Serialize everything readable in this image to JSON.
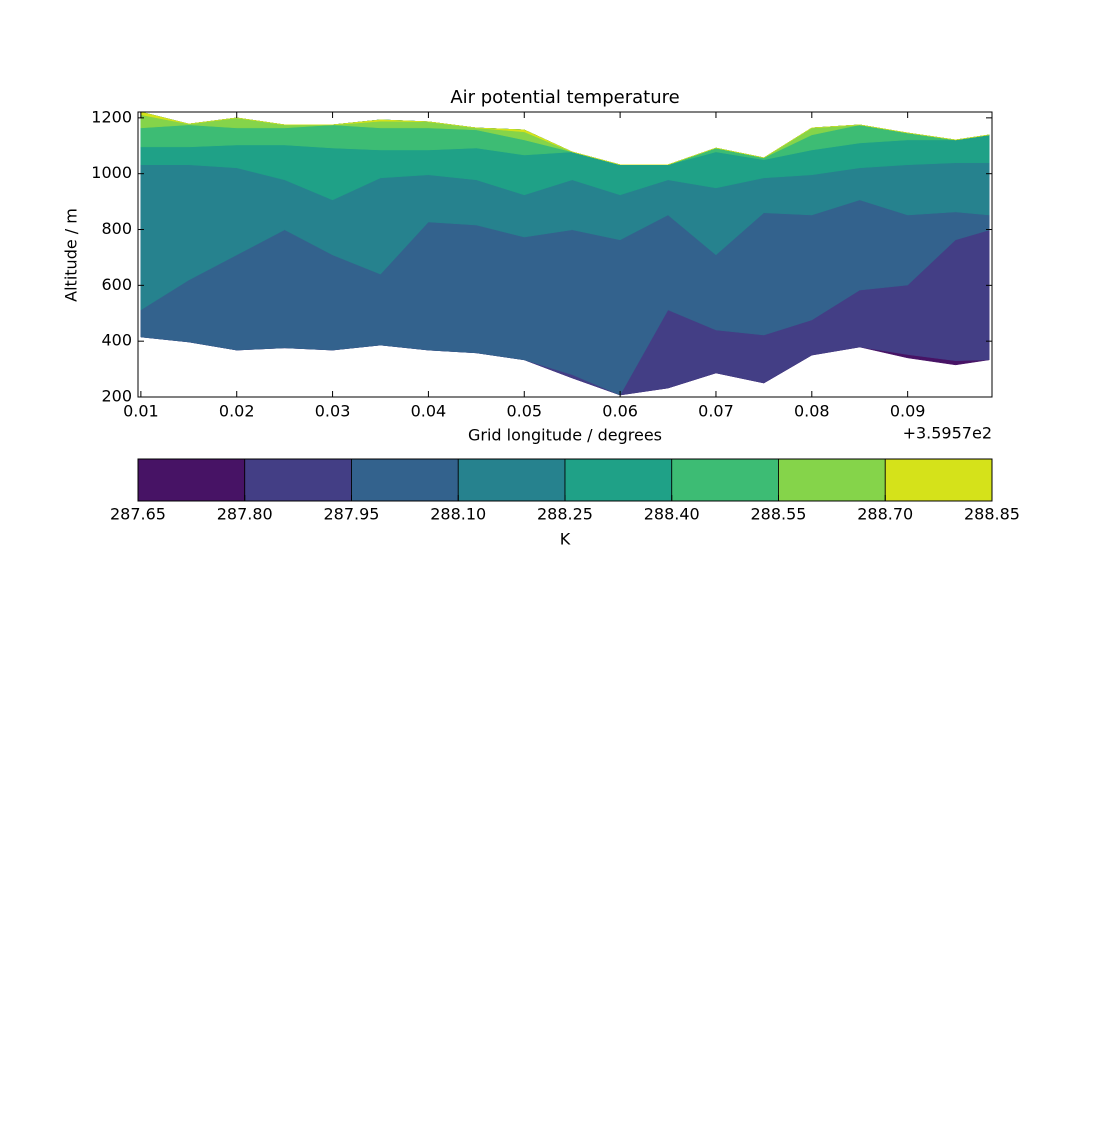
{
  "chart_data": {
    "type": "contourf",
    "title": "Air potential temperature",
    "xlabel": "Grid longitude / degrees",
    "ylabel": "Altitude / m",
    "x_offset_label": "+3.5957e2",
    "xlim": [
      0.0097,
      0.0988
    ],
    "xticks": [
      0.01,
      0.02,
      0.03,
      0.04,
      0.05,
      0.06,
      0.07,
      0.08,
      0.09
    ],
    "ylim": [
      200,
      1221
    ],
    "yticks": [
      200,
      400,
      600,
      800,
      1000,
      1200
    ],
    "x": [
      0.01,
      0.015,
      0.02,
      0.025,
      0.03,
      0.035,
      0.04,
      0.045,
      0.05,
      0.055,
      0.06,
      0.065,
      0.07,
      0.075,
      0.08,
      0.085,
      0.09,
      0.095,
      0.0985
    ],
    "ground": [
      415,
      397,
      368,
      376,
      368,
      386,
      368,
      358,
      333,
      268,
      207,
      232,
      286,
      250,
      350,
      379,
      340,
      315,
      333
    ],
    "top": [
      1221,
      1178,
      1200,
      1175,
      1175,
      1193,
      1186,
      1164,
      1157,
      1078,
      1032,
      1032,
      1092,
      1057,
      1164,
      1175,
      1146,
      1121,
      1139
    ],
    "boundaries": [
      [
        250,
        250,
        365,
        250,
        250,
        250,
        250,
        250,
        250,
        262,
        200,
        200,
        200,
        200,
        200,
        200,
        352,
        330,
        325
      ],
      [
        300,
        300,
        300,
        300,
        300,
        300,
        300,
        300,
        320,
        280,
        200,
        512,
        440,
        422,
        476,
        583,
        601,
        763,
        798
      ],
      [
        512,
        619,
        709,
        799,
        709,
        640,
        827,
        816,
        773,
        799,
        763,
        852,
        709,
        860,
        852,
        906,
        852,
        863,
        852
      ],
      [
        1032,
        1032,
        1021,
        978,
        906,
        985,
        996,
        978,
        924,
        978,
        924,
        978,
        949,
        985,
        996,
        1021,
        1032,
        1039,
        1039
      ],
      [
        1096,
        1096,
        1103,
        1103,
        1092,
        1085,
        1085,
        1092,
        1067,
        1078,
        1050,
        1067,
        1078,
        1050,
        1085,
        1110,
        1121,
        1121,
        1139
      ],
      [
        1164,
        1175,
        1164,
        1164,
        1175,
        1164,
        1164,
        1157,
        1121,
        1100,
        1100,
        1100,
        1100,
        1100,
        1139,
        1200,
        1200,
        1200,
        1200
      ],
      [
        1211,
        1230,
        1230,
        1230,
        1230,
        1188,
        1230,
        1230,
        1150,
        1230,
        1230,
        1230,
        1230,
        1230,
        1230,
        1230,
        1230,
        1230,
        1230
      ]
    ],
    "colorbar": {
      "label": "K",
      "levels": [
        {
          "value": 287.65,
          "label": "287.65"
        },
        {
          "value": 287.8,
          "label": "287.80"
        },
        {
          "value": 287.95,
          "label": "287.95"
        },
        {
          "value": 288.1,
          "label": "288.10"
        },
        {
          "value": 288.25,
          "label": "288.25"
        },
        {
          "value": 288.4,
          "label": "288.40"
        },
        {
          "value": 288.55,
          "label": "288.55"
        },
        {
          "value": 288.7,
          "label": "288.70"
        },
        {
          "value": 288.85,
          "label": "288.85"
        }
      ],
      "colors": [
        "#471365",
        "#433e85",
        "#33628d",
        "#26828e",
        "#1fa187",
        "#3dbc74",
        "#85d44a",
        "#d5e21a"
      ]
    }
  }
}
